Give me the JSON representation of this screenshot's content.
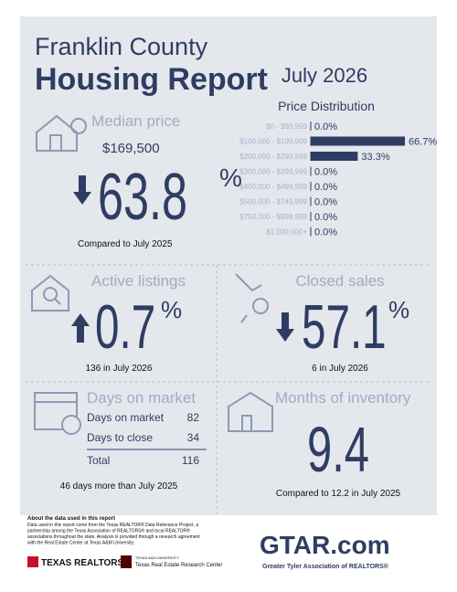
{
  "header": {
    "title_line1": "Franklin County",
    "title_line2": "Housing Report",
    "period": "July 2026"
  },
  "price_distribution": {
    "title": "Price Distribution",
    "categories": [
      "$0 - $99,999",
      "$100,000 - $199,999",
      "$200,000 - $299,999",
      "$300,000 - $399,999",
      "$400,000 - $499,999",
      "$500,000 - $749,999",
      "$750,000 - $999,999",
      "$1,000,000+"
    ],
    "values": [
      0,
      66.7,
      33.3,
      0,
      0,
      0,
      0,
      0
    ],
    "value_labels": [
      "0.0%",
      "66.7%",
      "33.3%",
      "0.0%",
      "0.0%",
      "0.0%",
      "0.0%",
      "0.0%"
    ]
  },
  "median_price": {
    "title": "Median price",
    "price": "$169,500",
    "change": 63.8,
    "unit": "%",
    "note": "Compared to July 2025"
  },
  "active_listings": {
    "title": "Active listings",
    "change": 0.7,
    "unit": "%",
    "note": "136 in July 2026"
  },
  "closed_sales": {
    "title": "Closed sales",
    "change": 57.1,
    "unit": "%",
    "note": "6 in July 2026"
  },
  "days_on_market": {
    "title": "Days on market",
    "rows": [
      [
        "Days on market",
        82
      ],
      [
        "Days to close",
        34
      ]
    ],
    "total": [
      "Total",
      116
    ],
    "note": "46 days more than July 2025"
  },
  "months_of_inventory": {
    "title": "Months of inventory",
    "value": 9.4,
    "note": "Compared to 12.2 in July 2025"
  },
  "footer": {
    "about_title": "About the data used in this report",
    "about_lines": [
      "Data used in this report come from the Texas REALTOR® Data Relevance Project, a",
      "partnership among the Texas Association of REALTORS® and local REALTOR®",
      "associations throughout the state. Analysis is provided through a research agreement",
      "with the Real Estate Center at Texas A&M University."
    ],
    "logo_texas_realtors": "TEXAS REALTORS",
    "logo_tamu": "TEXAS A&M UNIVERSITY",
    "logo_trerc": "Texas Real Estate Research Center",
    "logo_gtar": "GTAR.com",
    "logo_gtar_sub": "Greater Tyler Association of REALTORS®"
  }
}
